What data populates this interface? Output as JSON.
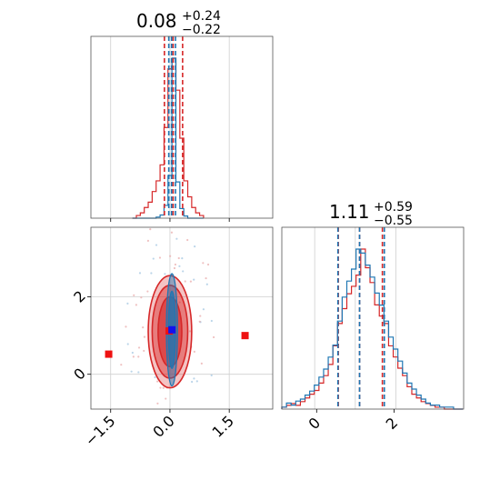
{
  "chart_data": [
    {
      "type": "histogram",
      "panel": "parameter-1-marginal",
      "title_value": "0.08",
      "title_plus": "+0.24",
      "title_minus": "−0.22",
      "xlim": [
        -2.0,
        2.6
      ],
      "grid": true,
      "bin_edges": [
        -0.95,
        -0.85,
        -0.75,
        -0.65,
        -0.55,
        -0.45,
        -0.35,
        -0.25,
        -0.15,
        -0.05,
        0.05,
        0.15,
        0.25,
        0.35,
        0.45,
        0.55,
        0.65,
        0.75,
        0.85
      ],
      "series": [
        {
          "color": "#d62728",
          "counts": [
            0,
            1,
            2,
            4,
            6,
            10,
            14,
            20,
            34,
            56,
            60,
            48,
            30,
            14,
            8,
            4,
            2,
            1
          ]
        },
        {
          "color": "#1f77b4",
          "counts": [
            0,
            0,
            0,
            0,
            0,
            0,
            1,
            3,
            12,
            40,
            150,
            34,
            9,
            2,
            0,
            0,
            0,
            0
          ]
        }
      ],
      "quantile_lines": [
        {
          "color": "#d62728",
          "values": [
            -0.14,
            0.08,
            0.32
          ]
        },
        {
          "color": "#1f77b4",
          "values": [
            -0.03,
            0.04,
            0.14
          ]
        }
      ]
    },
    {
      "type": "contour",
      "panel": "joint",
      "xlim": [
        -2.0,
        2.6
      ],
      "ylim": [
        -0.9,
        3.8
      ],
      "xticks": [
        "−1.5",
        "0.0",
        "1.5"
      ],
      "xtick_values": [
        -1.5,
        0.0,
        1.5
      ],
      "yticks": [
        "0",
        "2"
      ],
      "ytick_values": [
        0,
        2
      ],
      "grid": true,
      "red_contours": [
        {
          "cx": 0.0,
          "cy": 1.1,
          "rx": 0.55,
          "ry": 1.45
        },
        {
          "cx": 0.0,
          "cy": 1.1,
          "rx": 0.45,
          "ry": 1.2
        },
        {
          "cx": 0.0,
          "cy": 1.1,
          "rx": 0.3,
          "ry": 0.9
        }
      ],
      "blue_contours": [
        {
          "cx": 0.05,
          "cy": 1.15,
          "rx": 0.14,
          "ry": 1.45
        },
        {
          "cx": 0.05,
          "cy": 1.15,
          "rx": 0.09,
          "ry": 1.0
        }
      ],
      "red_markers": [
        {
          "x": -1.55,
          "y": 0.52
        },
        {
          "x": 1.9,
          "y": 1.0
        }
      ],
      "blue_marker": {
        "x": 0.05,
        "y": 1.15
      },
      "red_center_marker": {
        "x": -0.02,
        "y": 1.12
      }
    },
    {
      "type": "histogram",
      "panel": "parameter-2-marginal",
      "title_value": "1.11",
      "title_plus": "+0.59",
      "title_minus": "−0.55",
      "xlim": [
        -0.9,
        3.8
      ],
      "xticks": [
        "0",
        "2"
      ],
      "xtick_values": [
        0,
        2
      ],
      "grid": true,
      "bin_edges": [
        -0.9,
        -0.78,
        -0.66,
        -0.54,
        -0.42,
        -0.3,
        -0.18,
        -0.06,
        0.06,
        0.18,
        0.3,
        0.42,
        0.54,
        0.66,
        0.78,
        0.9,
        1.02,
        1.14,
        1.26,
        1.38,
        1.5,
        1.62,
        1.74,
        1.86,
        1.98,
        2.1,
        2.22,
        2.34,
        2.46,
        2.58,
        2.7,
        2.82,
        2.94,
        3.06,
        3.18,
        3.3,
        3.42,
        3.54,
        3.66,
        3.78
      ],
      "series": [
        {
          "color": "#d62728",
          "counts": [
            1,
            2,
            3,
            2,
            4,
            6,
            8,
            10,
            14,
            18,
            24,
            34,
            46,
            54,
            62,
            66,
            72,
            86,
            76,
            68,
            56,
            50,
            46,
            34,
            28,
            22,
            18,
            12,
            8,
            6,
            4,
            3,
            2,
            1,
            1,
            0,
            0,
            0,
            0
          ]
        },
        {
          "color": "#1f77b4",
          "counts": [
            1,
            3,
            2,
            4,
            5,
            7,
            9,
            12,
            16,
            20,
            26,
            32,
            44,
            56,
            64,
            70,
            80,
            78,
            72,
            66,
            58,
            52,
            44,
            36,
            30,
            24,
            18,
            13,
            10,
            7,
            5,
            3,
            2,
            2,
            1,
            1,
            1,
            0,
            0
          ]
        }
      ],
      "quantile_lines": [
        {
          "color": "#d62728",
          "values": [
            0.56,
            1.11,
            1.7
          ]
        },
        {
          "color": "#1f77b4",
          "values": [
            0.55,
            1.11,
            1.75
          ]
        }
      ]
    }
  ]
}
